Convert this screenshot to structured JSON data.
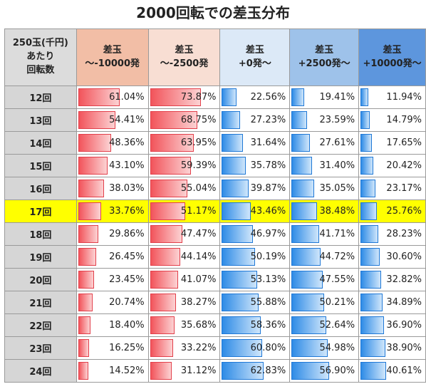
{
  "chart_data": {
    "type": "table",
    "title": "2000回転での差玉分布",
    "corner_label": [
      "250玉(千円)",
      "あたり",
      "回転数"
    ],
    "columns": [
      {
        "line1": "差玉",
        "line2": "～-10000発"
      },
      {
        "line1": "差玉",
        "line2": "～-2500発"
      },
      {
        "line1": "差玉",
        "line2": "+0発～"
      },
      {
        "line1": "差玉",
        "line2": "+2500発～"
      },
      {
        "line1": "差玉",
        "line2": "+10000発～"
      }
    ],
    "column_colors": [
      "#f2bea6",
      "#f8ded3",
      "#dce9f7",
      "#9ec2ea",
      "#5d96dd"
    ],
    "bar_colors": [
      "#f2545b",
      "#f2545b",
      "#2e8be6",
      "#2e8be6",
      "#2e8be6"
    ],
    "highlight_row": "17回",
    "highlight_color": "#ffff00",
    "rows": [
      {
        "label": "12回",
        "values": [
          "61.04%",
          "73.87%",
          "22.56%",
          "19.41%",
          "11.94%"
        ]
      },
      {
        "label": "13回",
        "values": [
          "54.41%",
          "68.75%",
          "27.23%",
          "23.59%",
          "14.79%"
        ]
      },
      {
        "label": "14回",
        "values": [
          "48.36%",
          "63.95%",
          "31.64%",
          "27.61%",
          "17.65%"
        ]
      },
      {
        "label": "15回",
        "values": [
          "43.10%",
          "59.39%",
          "35.78%",
          "31.40%",
          "20.42%"
        ]
      },
      {
        "label": "16回",
        "values": [
          "38.03%",
          "55.04%",
          "39.87%",
          "35.05%",
          "23.17%"
        ]
      },
      {
        "label": "17回",
        "values": [
          "33.76%",
          "51.17%",
          "43.46%",
          "38.48%",
          "25.76%"
        ]
      },
      {
        "label": "18回",
        "values": [
          "29.86%",
          "47.47%",
          "46.97%",
          "41.71%",
          "28.23%"
        ]
      },
      {
        "label": "19回",
        "values": [
          "26.45%",
          "44.14%",
          "50.19%",
          "44.72%",
          "30.60%"
        ]
      },
      {
        "label": "20回",
        "values": [
          "23.45%",
          "41.07%",
          "53.13%",
          "47.55%",
          "32.82%"
        ]
      },
      {
        "label": "21回",
        "values": [
          "20.74%",
          "38.27%",
          "55.88%",
          "50.21%",
          "34.89%"
        ]
      },
      {
        "label": "22回",
        "values": [
          "18.40%",
          "35.68%",
          "58.36%",
          "52.64%",
          "36.90%"
        ]
      },
      {
        "label": "23回",
        "values": [
          "16.25%",
          "33.22%",
          "60.80%",
          "54.98%",
          "38.90%"
        ]
      },
      {
        "label": "24回",
        "values": [
          "14.52%",
          "31.12%",
          "62.83%",
          "56.90%",
          "40.61%"
        ]
      }
    ]
  }
}
